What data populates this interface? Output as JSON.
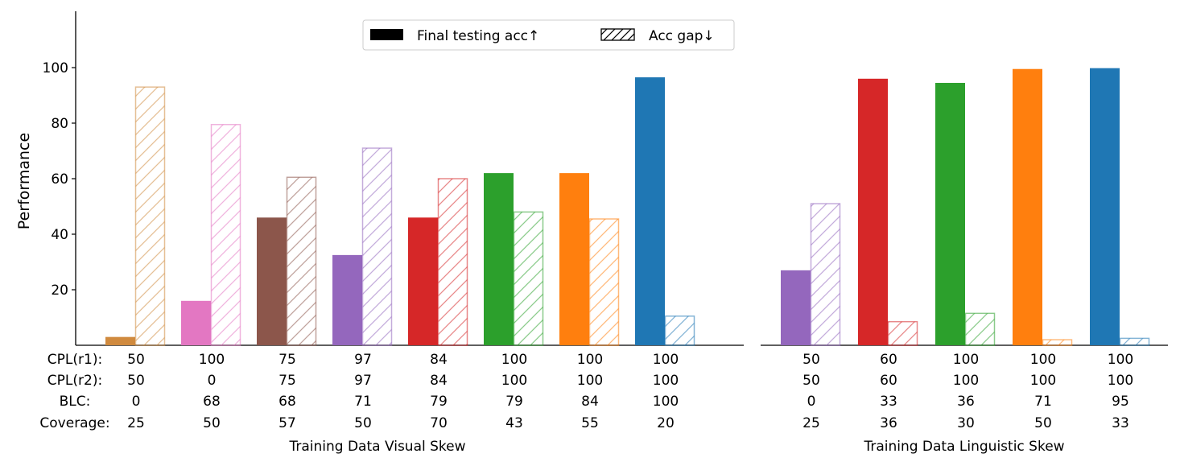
{
  "chart_data": {
    "type": "bar",
    "ylabel": "Performance",
    "ylim": [
      0,
      120
    ],
    "yticks": [
      20,
      40,
      60,
      80,
      100
    ],
    "legend": {
      "placement": "top-center",
      "items": [
        {
          "label": "Final testing acc↑",
          "style": "solid"
        },
        {
          "label": "Acc gap↓",
          "style": "hatched"
        }
      ]
    },
    "series": [
      {
        "name": "Final testing acc↑",
        "style": "solid"
      },
      {
        "name": "Acc gap↓",
        "style": "hatched"
      }
    ],
    "row_labels": [
      "CPL(r1):",
      "CPL(r2):",
      "BLC:",
      "Coverage:"
    ],
    "panels": [
      {
        "xlabel": "Training Data Visual Skew",
        "groups": [
          {
            "color": "#d08a3e",
            "acc": 3,
            "gap": 93,
            "rows": [
              "50",
              "50",
              "0",
              "25"
            ]
          },
          {
            "color": "#e377c2",
            "acc": 16,
            "gap": 79.5,
            "rows": [
              "100",
              "0",
              "68",
              "50"
            ]
          },
          {
            "color": "#8c564b",
            "acc": 46,
            "gap": 60.5,
            "rows": [
              "75",
              "75",
              "68",
              "57"
            ]
          },
          {
            "color": "#9467bd",
            "acc": 32.5,
            "gap": 71,
            "rows": [
              "97",
              "97",
              "71",
              "50"
            ]
          },
          {
            "color": "#d62728",
            "acc": 46,
            "gap": 60,
            "rows": [
              "84",
              "84",
              "79",
              "70"
            ]
          },
          {
            "color": "#2ca02c",
            "acc": 62,
            "gap": 48,
            "rows": [
              "100",
              "100",
              "79",
              "43"
            ]
          },
          {
            "color": "#ff7f0e",
            "acc": 62,
            "gap": 45.5,
            "rows": [
              "100",
              "100",
              "84",
              "55"
            ]
          },
          {
            "color": "#1f77b4",
            "acc": 96.5,
            "gap": 10.5,
            "rows": [
              "100",
              "100",
              "100",
              "20"
            ]
          }
        ]
      },
      {
        "xlabel": "Training Data Linguistic Skew",
        "groups": [
          {
            "color": "#9467bd",
            "acc": 27,
            "gap": 51,
            "rows": [
              "50",
              "50",
              "0",
              "25"
            ]
          },
          {
            "color": "#d62728",
            "acc": 96,
            "gap": 8.5,
            "rows": [
              "60",
              "60",
              "33",
              "36"
            ]
          },
          {
            "color": "#2ca02c",
            "acc": 94.5,
            "gap": 11.5,
            "rows": [
              "100",
              "100",
              "36",
              "30"
            ]
          },
          {
            "color": "#ff7f0e",
            "acc": 99.5,
            "gap": 2,
            "rows": [
              "100",
              "100",
              "71",
              "50"
            ]
          },
          {
            "color": "#1f77b4",
            "acc": 99.8,
            "gap": 2.5,
            "rows": [
              "100",
              "100",
              "95",
              "33"
            ]
          }
        ]
      }
    ]
  }
}
